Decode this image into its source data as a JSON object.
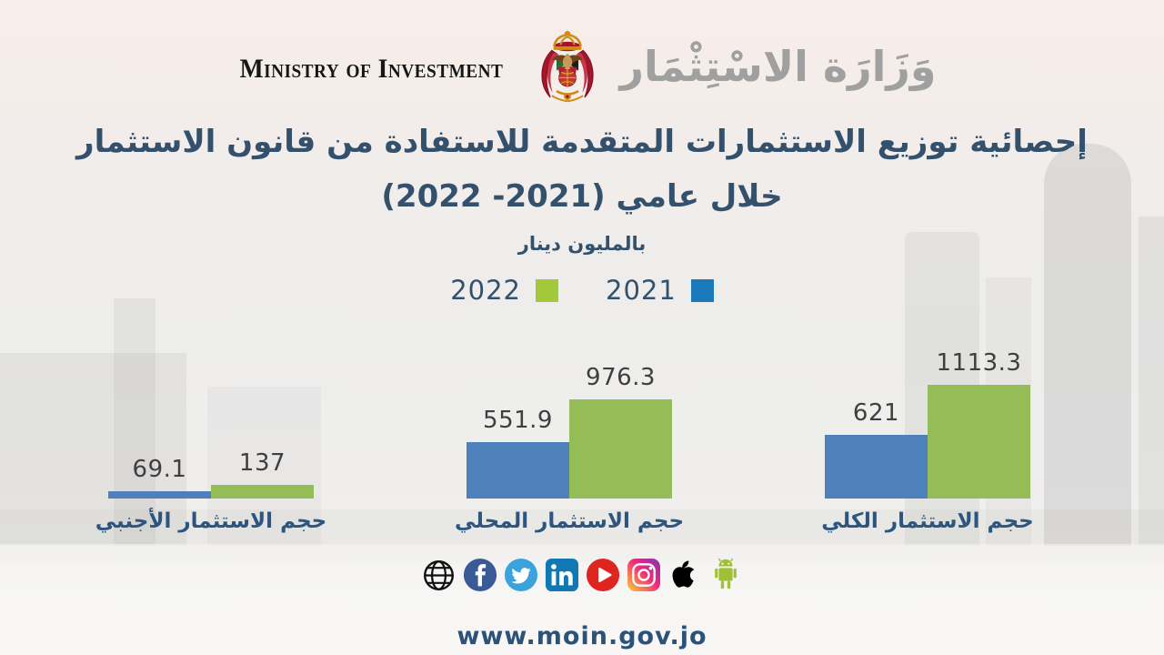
{
  "header": {
    "ministry_en": "Ministry of Investment",
    "ministry_ar": "وَزَارَة الاسْتِثْمَار",
    "emblem": "jordan-royal-crest"
  },
  "title": {
    "line1": "إحصائية توزيع الاستثمارات المتقدمة للاستفادة من قانون الاستثمار",
    "line2": "خلال عامي (2021- 2022)",
    "subtitle": "بالمليون دينار"
  },
  "legend": [
    {
      "label": "2022",
      "color": "#a3c93a"
    },
    {
      "label": "2021",
      "color": "#1b7abc"
    }
  ],
  "chart_data": {
    "type": "bar",
    "categories": [
      "حجم الاستثمار الأجنبي",
      "حجم الاستثمار المحلي",
      "حجم الاستثمار الكلي"
    ],
    "series": [
      {
        "name": "2021",
        "color": "#4e81bc",
        "values": [
          69.1,
          551.9,
          621
        ]
      },
      {
        "name": "2022",
        "color": "#94bd57",
        "values": [
          137,
          976.3,
          1113.3
        ]
      }
    ],
    "value_labels": [
      [
        "69.1",
        "137"
      ],
      [
        "551.9",
        "976.3"
      ],
      [
        "621",
        "1113.3"
      ]
    ],
    "title": "إحصائية توزيع الاستثمارات المتقدمة للاستفادة من قانون الاستثمار خلال عامي (2021- 2022)",
    "unit_label": "بالمليون دينار",
    "xlabel": "",
    "ylabel": "",
    "ylim": [
      0,
      1200
    ],
    "grid": false,
    "legend_position": "top"
  },
  "social": {
    "icons": [
      "globe",
      "facebook",
      "twitter",
      "linkedin",
      "youtube",
      "instagram",
      "apple",
      "android"
    ]
  },
  "footer": {
    "website": "www.moin.gov.jo"
  },
  "colors": {
    "title_navy": "#33516d",
    "category_navy": "#2c5680",
    "bar_blue": "#4e81bc",
    "bar_green": "#94bd57",
    "value_gray": "#3f3f3f",
    "calligraphy_gray": "#a0a0a0"
  }
}
